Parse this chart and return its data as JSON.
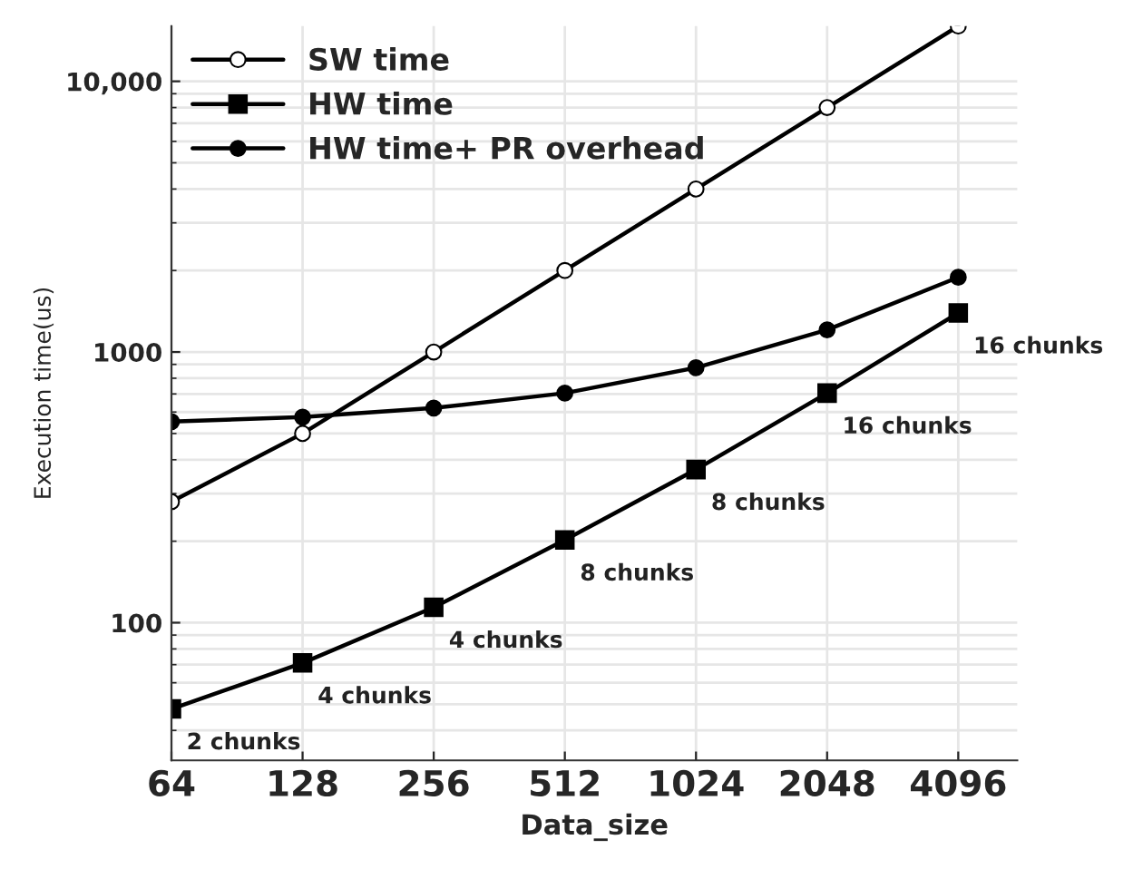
{
  "chart_data": {
    "type": "line",
    "xlabel": "Data_size",
    "ylabel": "Execution time(us)",
    "categories": [
      "64",
      "128",
      "256",
      "512",
      "1024",
      "2048",
      "4096"
    ],
    "series": [
      {
        "name": "SW time",
        "color": "#000000",
        "marker": "open circle",
        "values": [
          280,
          500,
          1000,
          2000,
          4000,
          8000,
          16000
        ]
      },
      {
        "name": "HW time",
        "color": "#000000",
        "marker": "square",
        "values": [
          48,
          71,
          114,
          202,
          368,
          705,
          1394
        ]
      },
      {
        "name": "HW time+ PR overhead",
        "color": "#000000",
        "marker": "circle",
        "values": [
          553,
          575,
          621,
          705,
          875,
          1208,
          1888
        ]
      }
    ],
    "log": "y",
    "ylim": [
      31,
      16000
    ],
    "yticks": [
      100,
      1000,
      {
        "value": 10000,
        "label": "10,000"
      }
    ],
    "grid": true,
    "legend": "top left",
    "line_style": "solid",
    "annotations": [
      {
        "text": "2 chunks",
        "x": "64",
        "y": 48
      },
      {
        "text": "4 chunks",
        "x": "128",
        "y": 71
      },
      {
        "text": "4 chunks",
        "x": "256",
        "y": 114
      },
      {
        "text": "8 chunks",
        "x": "512",
        "y": 202
      },
      {
        "text": "8 chunks",
        "x": "1024",
        "y": 368
      },
      {
        "text": "16 chunks",
        "x": "2048",
        "y": 705
      },
      {
        "text": "16 chunks",
        "x": "4096",
        "y": 1394
      }
    ]
  }
}
